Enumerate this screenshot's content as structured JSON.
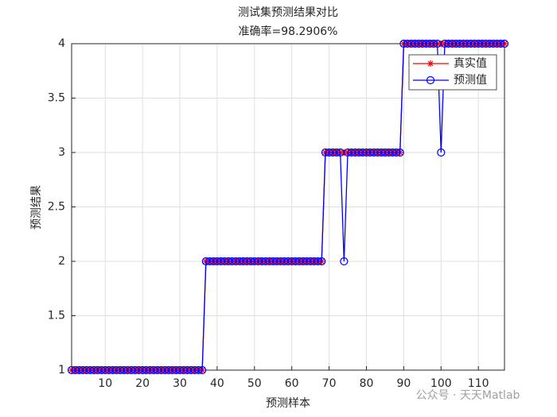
{
  "chart_data": {
    "type": "line",
    "title": "测试集预测结果对比",
    "subtitle": "准确率=98.2906%",
    "x_label": "预测样本",
    "y_label": "预测结果",
    "x": [
      1,
      2,
      3,
      4,
      5,
      6,
      7,
      8,
      9,
      10,
      11,
      12,
      13,
      14,
      15,
      16,
      17,
      18,
      19,
      20,
      21,
      22,
      23,
      24,
      25,
      26,
      27,
      28,
      29,
      30,
      31,
      32,
      33,
      34,
      35,
      36,
      37,
      38,
      39,
      40,
      41,
      42,
      43,
      44,
      45,
      46,
      47,
      48,
      49,
      50,
      51,
      52,
      53,
      54,
      55,
      56,
      57,
      58,
      59,
      60,
      61,
      62,
      63,
      64,
      65,
      66,
      67,
      68,
      69,
      70,
      71,
      72,
      73,
      74,
      75,
      76,
      77,
      78,
      79,
      80,
      81,
      82,
      83,
      84,
      85,
      86,
      87,
      88,
      89,
      90,
      91,
      92,
      93,
      94,
      95,
      96,
      97,
      98,
      99,
      100,
      101,
      102,
      103,
      104,
      105,
      106,
      107,
      108,
      109,
      110,
      111,
      112,
      113,
      114,
      115,
      116,
      117
    ],
    "series": [
      {
        "name": "真实值",
        "color": "#ff0000",
        "marker": "star",
        "values": [
          1,
          1,
          1,
          1,
          1,
          1,
          1,
          1,
          1,
          1,
          1,
          1,
          1,
          1,
          1,
          1,
          1,
          1,
          1,
          1,
          1,
          1,
          1,
          1,
          1,
          1,
          1,
          1,
          1,
          1,
          1,
          1,
          1,
          1,
          1,
          1,
          2,
          2,
          2,
          2,
          2,
          2,
          2,
          2,
          2,
          2,
          2,
          2,
          2,
          2,
          2,
          2,
          2,
          2,
          2,
          2,
          2,
          2,
          2,
          2,
          2,
          2,
          2,
          2,
          2,
          2,
          2,
          2,
          3,
          3,
          3,
          3,
          3,
          3,
          3,
          3,
          3,
          3,
          3,
          3,
          3,
          3,
          3,
          3,
          3,
          3,
          3,
          3,
          3,
          4,
          4,
          4,
          4,
          4,
          4,
          4,
          4,
          4,
          4,
          4,
          4,
          4,
          4,
          4,
          4,
          4,
          4,
          4,
          4,
          4,
          4,
          4,
          4,
          4,
          4,
          4,
          4
        ]
      },
      {
        "name": "预测值",
        "color": "#0000ff",
        "marker": "circle",
        "values": [
          1,
          1,
          1,
          1,
          1,
          1,
          1,
          1,
          1,
          1,
          1,
          1,
          1,
          1,
          1,
          1,
          1,
          1,
          1,
          1,
          1,
          1,
          1,
          1,
          1,
          1,
          1,
          1,
          1,
          1,
          1,
          1,
          1,
          1,
          1,
          1,
          2,
          2,
          2,
          2,
          2,
          2,
          2,
          2,
          2,
          2,
          2,
          2,
          2,
          2,
          2,
          2,
          2,
          2,
          2,
          2,
          2,
          2,
          2,
          2,
          2,
          2,
          2,
          2,
          2,
          2,
          2,
          2,
          3,
          3,
          3,
          3,
          3,
          2,
          3,
          3,
          3,
          3,
          3,
          3,
          3,
          3,
          3,
          3,
          3,
          3,
          3,
          3,
          3,
          4,
          4,
          4,
          4,
          4,
          4,
          4,
          4,
          4,
          4,
          3,
          4,
          4,
          4,
          4,
          4,
          4,
          4,
          4,
          4,
          4,
          4,
          4,
          4,
          4,
          4,
          4,
          4
        ]
      }
    ],
    "xlim": [
      1,
      117
    ],
    "xticks": [
      10,
      20,
      30,
      40,
      50,
      60,
      70,
      80,
      90,
      100,
      110
    ],
    "ylim": [
      1,
      4
    ],
    "yticks": [
      1,
      1.5,
      2,
      2.5,
      3,
      3.5,
      4
    ],
    "grid": true,
    "legend": "northeast",
    "watermark": "公众号 · 天天Matlab"
  }
}
